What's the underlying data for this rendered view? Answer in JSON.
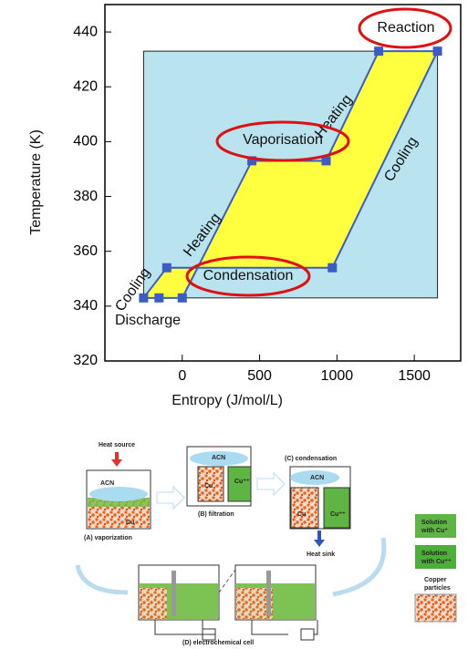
{
  "chart_data": {
    "type": "line",
    "xlabel": "Entropy (J/mol/L)",
    "ylabel": "Temperature (K)",
    "xlim": [
      -500,
      1800
    ],
    "ylim": [
      320,
      450
    ],
    "xticks": [
      0,
      500,
      1000,
      1500
    ],
    "yticks": [
      320,
      340,
      360,
      380,
      400,
      420,
      440
    ],
    "box": {
      "x": [
        -250,
        1650
      ],
      "y": [
        343,
        433
      ],
      "color": "#b8e3ef"
    },
    "cycle": {
      "color": "#3b5cc4",
      "fill": "#ffff40",
      "x": [
        -250,
        -100,
        970,
        1650,
        1270,
        930,
        450,
        0,
        -150
      ],
      "y": [
        343,
        354,
        354,
        433,
        433,
        393,
        393,
        343,
        343
      ]
    },
    "annotations": [
      "Reaction",
      "Vaporisation",
      "Condensation",
      "Heating",
      "Heating",
      "Cooling",
      "Cooling",
      "Discharge"
    ]
  },
  "diagram": {
    "heat_source": "Heat source",
    "heat_sink": "Heat sink",
    "panels": [
      {
        "label": "(A) vaporization",
        "texts": [
          "ACN",
          "Cu"
        ]
      },
      {
        "label": "(B) filtration",
        "texts": [
          "ACN",
          "Cu",
          "Cu⁺⁺"
        ]
      },
      {
        "label": "(C) condensation",
        "texts": [
          "ACN",
          "Cu",
          "Cu⁺⁺"
        ]
      },
      {
        "label": "(D) electrochemical cell"
      }
    ],
    "legend": [
      {
        "lines": [
          "Solution",
          "with Cu⁺"
        ]
      },
      {
        "lines": [
          "Solution",
          "with Cu⁺⁺"
        ]
      },
      {
        "lines": [
          "Copper",
          "particles"
        ]
      }
    ]
  }
}
